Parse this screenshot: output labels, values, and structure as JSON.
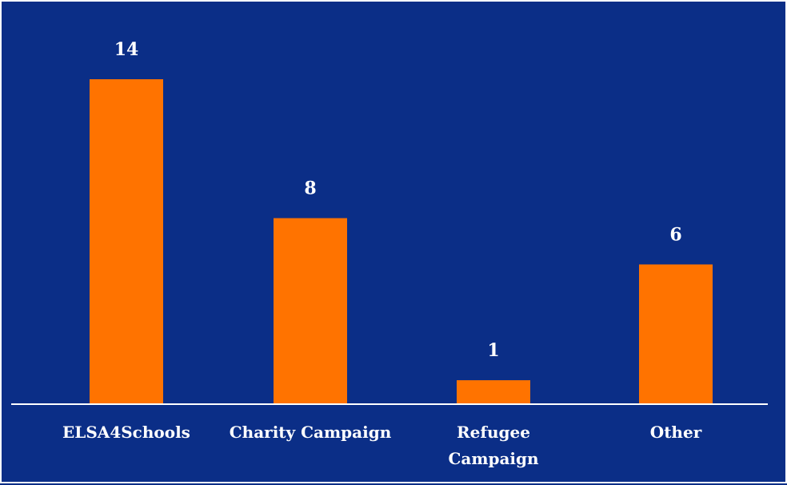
{
  "chart_data": {
    "type": "bar",
    "categories": [
      [
        "ELSA4Schools"
      ],
      [
        "Charity Campaign"
      ],
      [
        "Refugee",
        "Campaign"
      ],
      [
        "Other"
      ]
    ],
    "values": [
      14,
      8,
      1,
      6
    ],
    "data_labels": [
      "14",
      "8",
      "1",
      "6"
    ],
    "ylim": [
      0,
      14
    ],
    "grid": false,
    "legend": "none",
    "colors": {
      "background": "#0b2e87",
      "bar": "#ff7300",
      "text": "#ffffff",
      "axis": "#ffffff"
    }
  }
}
